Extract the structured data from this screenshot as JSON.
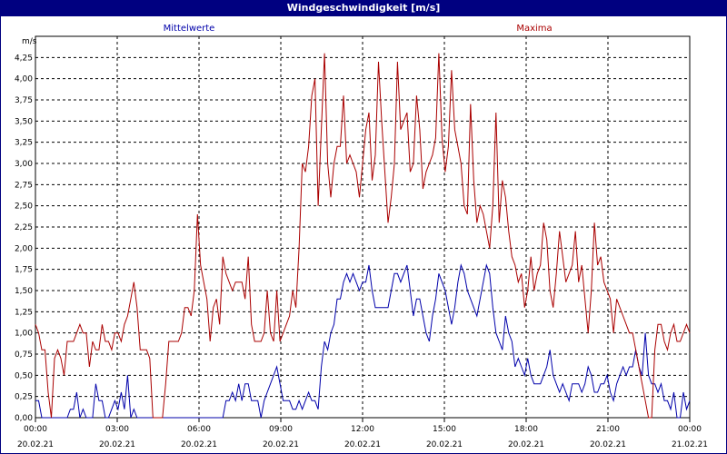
{
  "window": {
    "title": "Windgeschwindigkeit [m/s]"
  },
  "chart_data": {
    "type": "line",
    "title": "Windgeschwindigkeit [m/s]",
    "ylabel": "m/s",
    "ylim": [
      0,
      4.5
    ],
    "y_ticks": [
      "0,00",
      "0,25",
      "0,50",
      "0,75",
      "1,00",
      "1,25",
      "1,50",
      "1,75",
      "2,00",
      "2,25",
      "2,50",
      "2,75",
      "3,00",
      "3,25",
      "3,50",
      "3,75",
      "4,00",
      "4,25"
    ],
    "x_ticks": [
      {
        "time": "00:00",
        "date": "20.02.21"
      },
      {
        "time": "03:00",
        "date": "20.02.21"
      },
      {
        "time": "06:00",
        "date": "20.02.21"
      },
      {
        "time": "09:00",
        "date": "20.02.21"
      },
      {
        "time": "12:00",
        "date": "20.02.21"
      },
      {
        "time": "15:00",
        "date": "20.02.21"
      },
      {
        "time": "18:00",
        "date": "20.02.21"
      },
      {
        "time": "21:00",
        "date": "20.02.21"
      },
      {
        "time": "00:00",
        "date": "21.02.21"
      }
    ],
    "grid": true,
    "series": [
      {
        "name": "Mittelwerte",
        "color": "#0000aa",
        "values": [
          0.2,
          0.2,
          0,
          0,
          0,
          0,
          0,
          0,
          0,
          0,
          0,
          0.1,
          0.1,
          0.3,
          0,
          0.1,
          0,
          0,
          0,
          0.4,
          0.2,
          0.2,
          0,
          0,
          0.1,
          0.2,
          0.1,
          0.3,
          0.1,
          0.5,
          0,
          0.1,
          0,
          0,
          0,
          0,
          0,
          0,
          0,
          0,
          0,
          0,
          0,
          0,
          0,
          0,
          0,
          0,
          0,
          0,
          0,
          0,
          0,
          0,
          0,
          0,
          0,
          0,
          0,
          0,
          0.2,
          0.2,
          0.3,
          0.2,
          0.4,
          0.2,
          0.4,
          0.4,
          0.2,
          0.2,
          0.2,
          0,
          0.2,
          0.3,
          0.4,
          0.5,
          0.6,
          0.4,
          0.2,
          0.2,
          0.2,
          0.1,
          0.1,
          0.2,
          0.1,
          0.2,
          0.3,
          0.2,
          0.2,
          0.1,
          0.6,
          0.9,
          0.8,
          1.0,
          1.1,
          1.4,
          1.4,
          1.6,
          1.7,
          1.6,
          1.7,
          1.6,
          1.5,
          1.6,
          1.6,
          1.8,
          1.5,
          1.3,
          1.3,
          1.3,
          1.3,
          1.3,
          1.5,
          1.7,
          1.7,
          1.6,
          1.7,
          1.8,
          1.5,
          1.2,
          1.4,
          1.4,
          1.2,
          1.0,
          0.9,
          1.2,
          1.4,
          1.7,
          1.6,
          1.5,
          1.3,
          1.1,
          1.3,
          1.6,
          1.8,
          1.7,
          1.5,
          1.4,
          1.3,
          1.2,
          1.4,
          1.6,
          1.8,
          1.7,
          1.3,
          1.0,
          0.9,
          0.8,
          1.2,
          1.0,
          0.9,
          0.6,
          0.7,
          0.6,
          0.5,
          0.7,
          0.5,
          0.4,
          0.4,
          0.4,
          0.5,
          0.6,
          0.8,
          0.5,
          0.4,
          0.3,
          0.4,
          0.3,
          0.2,
          0.4,
          0.4,
          0.4,
          0.3,
          0.4,
          0.6,
          0.5,
          0.3,
          0.3,
          0.4,
          0.4,
          0.5,
          0.3,
          0.2,
          0.4,
          0.5,
          0.6,
          0.5,
          0.6,
          0.6,
          0.8,
          0.6,
          0.5,
          1.0,
          0.5,
          0.4,
          0.4,
          0.3,
          0.4,
          0.2,
          0.2,
          0.1,
          0.3,
          0,
          0,
          0.3,
          0.1,
          0.2
        ]
      },
      {
        "name": "Maxima",
        "color": "#aa0000",
        "values": [
          1.1,
          1.0,
          0.8,
          0.8,
          0.3,
          0,
          0.7,
          0.8,
          0.7,
          0.5,
          0.9,
          0.9,
          0.9,
          1.0,
          1.1,
          1.0,
          1.0,
          0.6,
          0.9,
          0.8,
          0.8,
          1.1,
          0.9,
          0.9,
          0.8,
          1.0,
          1.0,
          0.9,
          1.1,
          1.2,
          1.4,
          1.6,
          1.3,
          0.8,
          0.8,
          0.8,
          0.7,
          0,
          0,
          0,
          0,
          0.4,
          0.9,
          0.9,
          0.9,
          0.9,
          1.0,
          1.3,
          1.3,
          1.2,
          1.5,
          2.4,
          1.8,
          1.6,
          1.4,
          0.9,
          1.3,
          1.4,
          1.1,
          1.9,
          1.7,
          1.6,
          1.5,
          1.6,
          1.6,
          1.6,
          1.4,
          1.9,
          1.1,
          0.9,
          0.9,
          0.9,
          1.0,
          1.5,
          1.0,
          0.9,
          1.5,
          0.9,
          1.0,
          1.1,
          1.2,
          1.5,
          1.3,
          2.0,
          3.0,
          2.9,
          3.2,
          3.8,
          4.0,
          2.5,
          3.4,
          4.3,
          3.0,
          2.6,
          3.0,
          3.2,
          3.2,
          3.8,
          3.0,
          3.1,
          3.0,
          2.9,
          2.6,
          3.0,
          3.4,
          3.6,
          2.8,
          3.1,
          4.2,
          3.5,
          2.9,
          2.3,
          2.6,
          3.0,
          4.2,
          3.4,
          3.5,
          3.6,
          2.9,
          3.0,
          3.8,
          3.4,
          2.7,
          2.9,
          3.0,
          3.1,
          3.3,
          4.3,
          3.3,
          2.9,
          3.2,
          4.1,
          3.4,
          3.2,
          3.0,
          2.5,
          2.4,
          3.7,
          2.8,
          2.3,
          2.5,
          2.4,
          2.2,
          2.0,
          2.5,
          3.6,
          2.3,
          2.8,
          2.6,
          2.2,
          1.9,
          1.8,
          1.6,
          1.7,
          1.3,
          1.5,
          1.9,
          1.5,
          1.7,
          1.8,
          2.3,
          2.1,
          1.5,
          1.3,
          1.7,
          2.2,
          1.9,
          1.6,
          1.7,
          1.8,
          2.2,
          1.6,
          1.8,
          1.4,
          1.0,
          1.5,
          2.3,
          1.8,
          1.9,
          1.6,
          1.5,
          1.4,
          1.0,
          1.4,
          1.3,
          1.2,
          1.1,
          1.0,
          1.0,
          0.8,
          0.6,
          0.4,
          0.2,
          0,
          0,
          0.8,
          1.1,
          1.1,
          0.9,
          0.8,
          1.0,
          1.1,
          0.9,
          0.9,
          1.0,
          1.1,
          1.0
        ]
      }
    ]
  }
}
